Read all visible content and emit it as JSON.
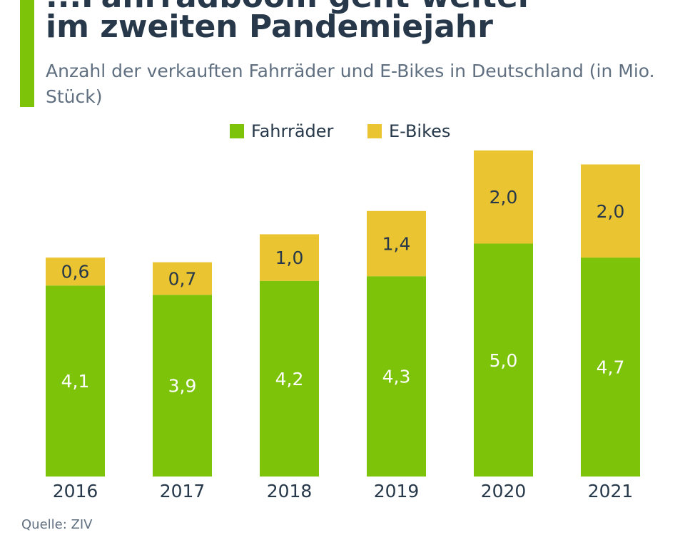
{
  "header": {
    "title_partial": "...Fahrradboom geht weiter",
    "title": "im zweiten Pandemiejahr",
    "subtitle": "Anzahl der verkauften Fahrräder und E-Bikes in Deutschland (in Mio. Stück)"
  },
  "source": "Quelle: ZIV",
  "colors": {
    "accent": "#7cc30a",
    "fahrraeder": "#7cc30a",
    "ebikes": "#ebc431",
    "title_text": "#263849",
    "body_text": "#5f6f80"
  },
  "chart_data": {
    "type": "bar",
    "stacked": true,
    "categories": [
      "2016",
      "2017",
      "2018",
      "2019",
      "2020",
      "2021"
    ],
    "series": [
      {
        "name": "Fahrräder",
        "values": [
          4.1,
          3.9,
          4.2,
          4.3,
          5.0,
          4.7
        ],
        "labels": [
          "4,1",
          "3,9",
          "4,2",
          "4,3",
          "5,0",
          "4,7"
        ]
      },
      {
        "name": "E-Bikes",
        "values": [
          0.6,
          0.7,
          1.0,
          1.4,
          2.0,
          2.0
        ],
        "labels": [
          "0,6",
          "0,7",
          "1,0",
          "1,4",
          "2,0",
          "2,0"
        ]
      }
    ],
    "title": "im zweiten Pandemiejahr",
    "subtitle": "Anzahl der verkauften Fahrräder und E-Bikes in Deutschland (in Mio. Stück)",
    "xlabel": "",
    "ylabel": "",
    "ylim": [
      0,
      7.0
    ],
    "grid": false,
    "legend": "top-center"
  }
}
